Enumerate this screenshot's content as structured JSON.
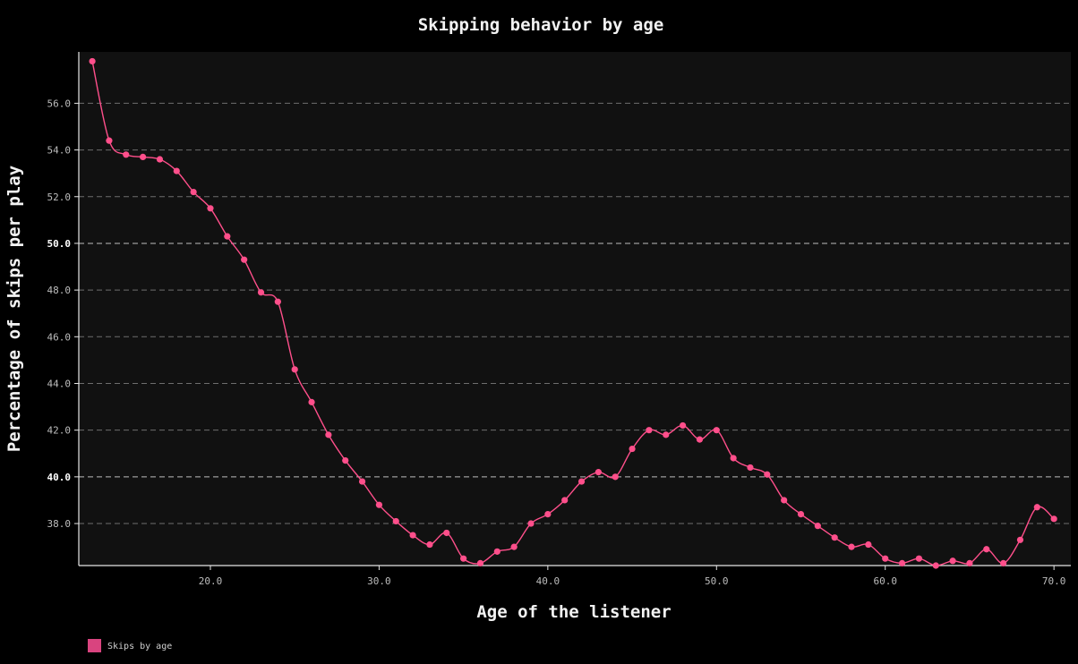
{
  "chart_data": {
    "type": "line",
    "title": "Skipping behavior by age",
    "xlabel": "Age of the listener",
    "ylabel": "Percentage of skips per play",
    "xlim": [
      12.2,
      71
    ],
    "ylim": [
      36.2,
      58.2
    ],
    "x_ticks": [
      "20.0",
      "30.0",
      "40.0",
      "50.0",
      "60.0",
      "70.0"
    ],
    "x_tick_values": [
      20,
      30,
      40,
      50,
      60,
      70
    ],
    "y_ticks": [
      "38.0",
      "40.0",
      "42.0",
      "44.0",
      "46.0",
      "48.0",
      "50.0",
      "52.0",
      "54.0",
      "56.0"
    ],
    "y_tick_values": [
      38,
      40,
      42,
      44,
      46,
      48,
      50,
      52,
      54,
      56
    ],
    "y_major_ticks": [
      40,
      50
    ],
    "grid": true,
    "legend_position": "bottom-left",
    "series": [
      {
        "name": "Skips by age",
        "color": "#ff4f8b",
        "x": [
          13,
          14,
          15,
          16,
          17,
          18,
          19,
          20,
          21,
          22,
          23,
          24,
          25,
          26,
          27,
          28,
          29,
          30,
          31,
          32,
          33,
          34,
          35,
          36,
          37,
          38,
          39,
          40,
          41,
          42,
          43,
          44,
          45,
          46,
          47,
          48,
          49,
          50,
          51,
          52,
          53,
          54,
          55,
          56,
          57,
          58,
          59,
          60,
          61,
          62,
          63,
          64,
          65,
          66,
          67,
          68,
          69,
          70
        ],
        "y": [
          57.8,
          54.4,
          53.8,
          53.7,
          53.6,
          53.1,
          52.2,
          51.5,
          50.3,
          49.3,
          47.9,
          47.5,
          44.6,
          43.2,
          41.8,
          40.7,
          39.8,
          38.8,
          38.1,
          37.5,
          37.1,
          37.6,
          36.5,
          36.3,
          36.8,
          37.0,
          38.0,
          38.4,
          39.0,
          39.8,
          40.2,
          40.0,
          41.2,
          42.0,
          41.8,
          42.2,
          41.6,
          42.0,
          40.8,
          40.4,
          40.1,
          39.0,
          38.4,
          37.9,
          37.4,
          37.0,
          37.1,
          36.5,
          36.3,
          36.5,
          36.2,
          36.4,
          36.3,
          36.9,
          36.3,
          37.3,
          38.7,
          38.2
        ]
      }
    ]
  },
  "legend": {
    "label": "Skips by age",
    "color": "#d9447f"
  },
  "colors": {
    "background": "#000000",
    "plot_area": "#111111",
    "grid": "#777777",
    "axis": "#e6e6e6"
  }
}
